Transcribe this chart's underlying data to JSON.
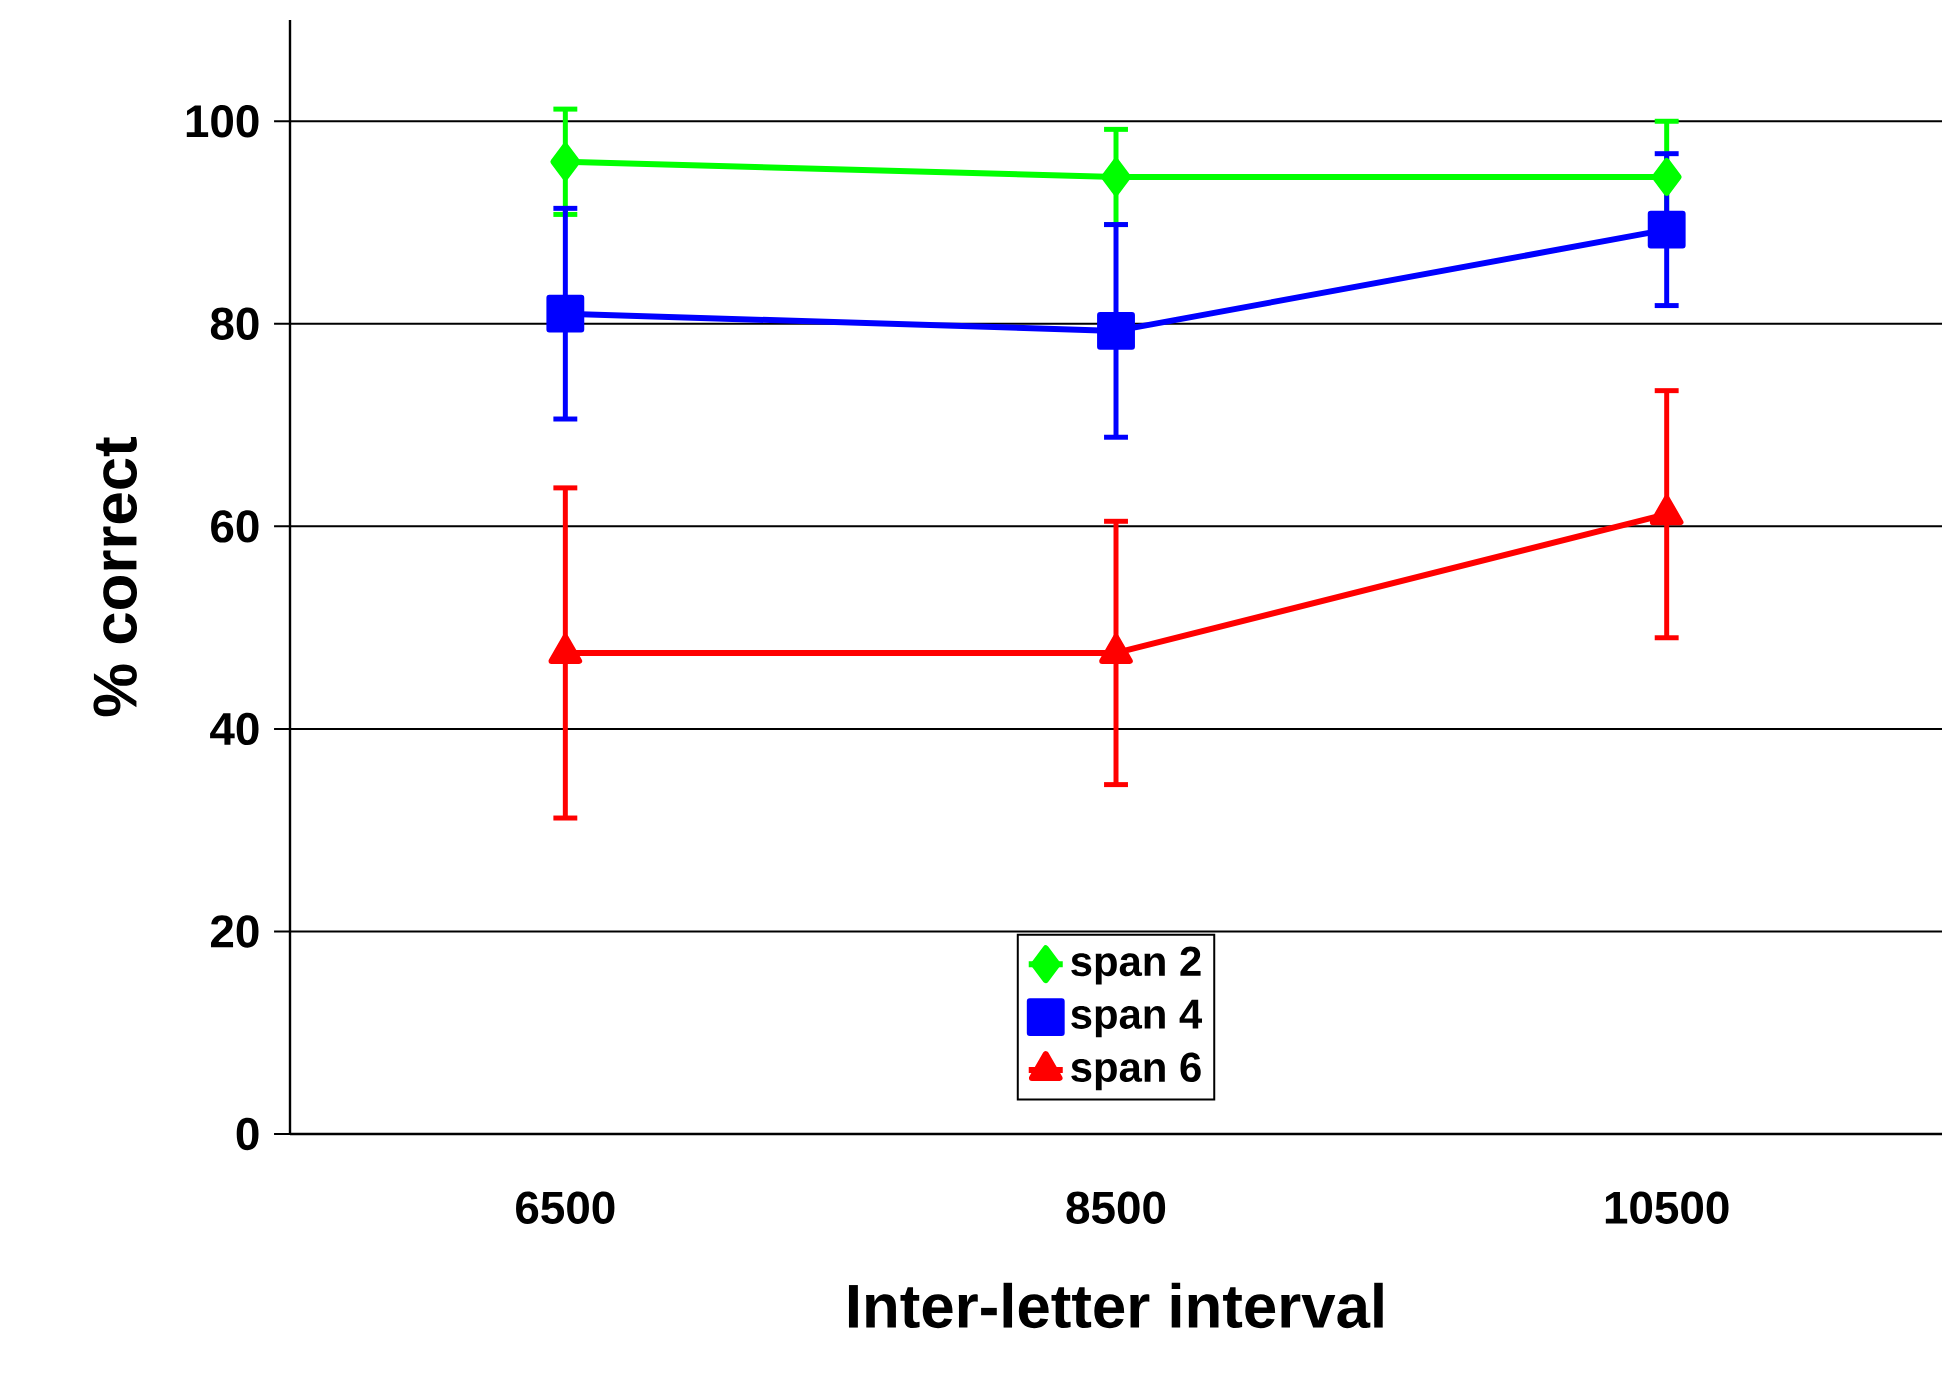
{
  "chart_data": {
    "type": "line",
    "xlabel": "Inter-letter interval",
    "ylabel": "% correct",
    "categories": [
      "6500",
      "8500",
      "10500"
    ],
    "series": [
      {
        "name": "span 2",
        "color": "#00ff00",
        "marker": "diamond",
        "values": [
          96.0,
          94.5,
          94.5
        ],
        "errors": [
          5.2,
          4.7,
          5.5
        ]
      },
      {
        "name": "span 4",
        "color": "#0000ff",
        "marker": "square",
        "values": [
          81.0,
          79.3,
          89.3
        ],
        "errors": [
          10.4,
          10.5,
          7.5
        ]
      },
      {
        "name": "span 6",
        "color": "#ff0000",
        "marker": "triangle",
        "values": [
          47.5,
          47.5,
          61.2
        ],
        "errors": [
          16.3,
          13.0,
          12.2
        ]
      }
    ],
    "ylim": [
      0,
      110
    ],
    "yticks": [
      0,
      20,
      40,
      60,
      80,
      100
    ],
    "grid": "y",
    "legend": "bottom"
  }
}
